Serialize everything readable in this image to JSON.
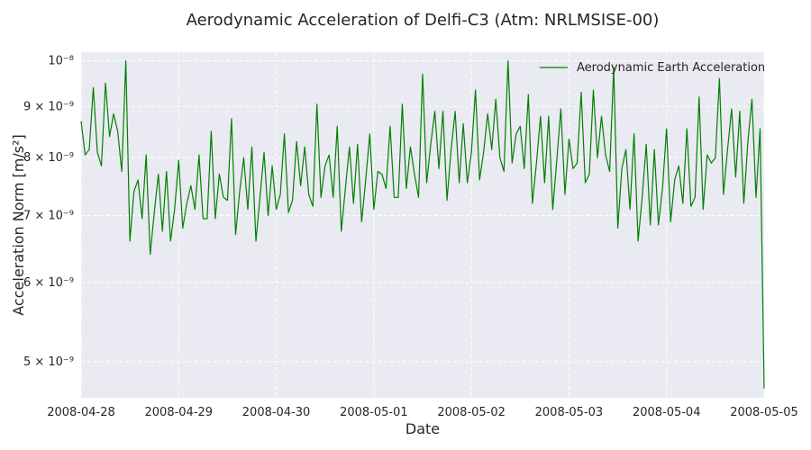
{
  "chart_data": {
    "type": "line",
    "title": "Aerodynamic Acceleration of Delfi-C3 (Atm: NRLMSISE-00)",
    "xlabel": "Date",
    "ylabel": "Acceleration Norm [m/s²]",
    "yscale": "log",
    "grid": true,
    "legend_placement": "top-right",
    "xlim": [
      "2008-04-28",
      "2008-05-05"
    ],
    "ylim": [
      4.6e-09,
      1.02e-08
    ],
    "x_ticks": [
      "2008-04-28",
      "2008-04-29",
      "2008-04-30",
      "2008-05-01",
      "2008-05-02",
      "2008-05-03",
      "2008-05-04",
      "2008-05-05"
    ],
    "y_ticks": [
      {
        "value": 1e-08,
        "label": "10⁻⁸"
      },
      {
        "value": 9e-09,
        "label": "9 × 10⁻⁹"
      },
      {
        "value": 8e-09,
        "label": "8 × 10⁻⁹"
      },
      {
        "value": 7e-09,
        "label": "7 × 10⁻⁹"
      },
      {
        "value": 6e-09,
        "label": "6 × 10⁻⁹"
      },
      {
        "value": 5e-09,
        "label": "5 × 10⁻⁹"
      }
    ],
    "colors": {
      "line": "#008000",
      "plot_bg": "#eaeaf2",
      "grid": "#ffffff"
    },
    "series": [
      {
        "name": "Aerodynamic Earth Acceleration",
        "x": [
          "2008-04-28T00:00",
          "2008-04-28T01:00",
          "2008-04-28T02:00",
          "2008-04-28T03:00",
          "2008-04-28T04:00",
          "2008-04-28T05:00",
          "2008-04-28T06:00",
          "2008-04-28T07:00",
          "2008-04-28T08:00",
          "2008-04-28T09:00",
          "2008-04-28T10:00",
          "2008-04-28T11:00",
          "2008-04-28T12:00",
          "2008-04-28T13:00",
          "2008-04-28T14:00",
          "2008-04-28T15:00",
          "2008-04-28T16:00",
          "2008-04-28T17:00",
          "2008-04-28T18:00",
          "2008-04-28T19:00",
          "2008-04-28T20:00",
          "2008-04-28T21:00",
          "2008-04-28T22:00",
          "2008-04-28T23:00",
          "2008-04-29T00:00",
          "2008-04-29T01:00",
          "2008-04-29T02:00",
          "2008-04-29T03:00",
          "2008-04-29T04:00",
          "2008-04-29T05:00",
          "2008-04-29T06:00",
          "2008-04-29T07:00",
          "2008-04-29T08:00",
          "2008-04-29T09:00",
          "2008-04-29T10:00",
          "2008-04-29T11:00",
          "2008-04-29T12:00",
          "2008-04-29T13:00",
          "2008-04-29T14:00",
          "2008-04-29T15:00",
          "2008-04-29T16:00",
          "2008-04-29T17:00",
          "2008-04-29T18:00",
          "2008-04-29T19:00",
          "2008-04-29T20:00",
          "2008-04-29T21:00",
          "2008-04-29T22:00",
          "2008-04-29T23:00",
          "2008-04-30T00:00",
          "2008-04-30T01:00",
          "2008-04-30T02:00",
          "2008-04-30T03:00",
          "2008-04-30T04:00",
          "2008-04-30T05:00",
          "2008-04-30T06:00",
          "2008-04-30T07:00",
          "2008-04-30T08:00",
          "2008-04-30T09:00",
          "2008-04-30T10:00",
          "2008-04-30T11:00",
          "2008-04-30T12:00",
          "2008-04-30T13:00",
          "2008-04-30T14:00",
          "2008-04-30T15:00",
          "2008-04-30T16:00",
          "2008-04-30T17:00",
          "2008-04-30T18:00",
          "2008-04-30T19:00",
          "2008-04-30T20:00",
          "2008-04-30T21:00",
          "2008-04-30T22:00",
          "2008-04-30T23:00",
          "2008-05-01T00:00",
          "2008-05-01T01:00",
          "2008-05-01T02:00",
          "2008-05-01T03:00",
          "2008-05-01T04:00",
          "2008-05-01T05:00",
          "2008-05-01T06:00",
          "2008-05-01T07:00",
          "2008-05-01T08:00",
          "2008-05-01T09:00",
          "2008-05-01T10:00",
          "2008-05-01T11:00",
          "2008-05-01T12:00",
          "2008-05-01T13:00",
          "2008-05-01T14:00",
          "2008-05-01T15:00",
          "2008-05-01T16:00",
          "2008-05-01T17:00",
          "2008-05-01T18:00",
          "2008-05-01T19:00",
          "2008-05-01T20:00",
          "2008-05-01T21:00",
          "2008-05-01T22:00",
          "2008-05-01T23:00",
          "2008-05-02T00:00",
          "2008-05-02T01:00",
          "2008-05-02T02:00",
          "2008-05-02T03:00",
          "2008-05-02T04:00",
          "2008-05-02T05:00",
          "2008-05-02T06:00",
          "2008-05-02T07:00",
          "2008-05-02T08:00",
          "2008-05-02T09:00",
          "2008-05-02T10:00",
          "2008-05-02T11:00",
          "2008-05-02T12:00",
          "2008-05-02T13:00",
          "2008-05-02T14:00",
          "2008-05-02T15:00",
          "2008-05-02T16:00",
          "2008-05-02T17:00",
          "2008-05-02T18:00",
          "2008-05-02T19:00",
          "2008-05-02T20:00",
          "2008-05-02T21:00",
          "2008-05-02T22:00",
          "2008-05-02T23:00",
          "2008-05-03T00:00",
          "2008-05-03T01:00",
          "2008-05-03T02:00",
          "2008-05-03T03:00",
          "2008-05-03T04:00",
          "2008-05-03T05:00",
          "2008-05-03T06:00",
          "2008-05-03T07:00",
          "2008-05-03T08:00",
          "2008-05-03T09:00",
          "2008-05-03T10:00",
          "2008-05-03T11:00",
          "2008-05-03T12:00",
          "2008-05-03T13:00",
          "2008-05-03T14:00",
          "2008-05-03T15:00",
          "2008-05-03T16:00",
          "2008-05-03T17:00",
          "2008-05-03T18:00",
          "2008-05-03T19:00",
          "2008-05-03T20:00",
          "2008-05-03T21:00",
          "2008-05-03T22:00",
          "2008-05-03T23:00",
          "2008-05-04T00:00",
          "2008-05-04T01:00",
          "2008-05-04T02:00",
          "2008-05-04T03:00",
          "2008-05-04T04:00",
          "2008-05-04T05:00",
          "2008-05-04T06:00",
          "2008-05-04T07:00",
          "2008-05-04T08:00",
          "2008-05-04T09:00",
          "2008-05-04T10:00",
          "2008-05-04T11:00",
          "2008-05-04T12:00",
          "2008-05-04T13:00",
          "2008-05-04T14:00",
          "2008-05-04T15:00",
          "2008-05-04T16:00",
          "2008-05-04T17:00",
          "2008-05-04T18:00",
          "2008-05-04T19:00",
          "2008-05-04T20:00",
          "2008-05-04T21:00",
          "2008-05-04T22:00",
          "2008-05-04T23:00",
          "2008-05-05T00:00"
        ],
        "y": [
          8.7e-09,
          8.05e-09,
          8.15e-09,
          9.4e-09,
          8.1e-09,
          7.85e-09,
          9.5e-09,
          8.4e-09,
          8.85e-09,
          8.5e-09,
          7.75e-09,
          1e-08,
          6.6e-09,
          7.4e-09,
          7.6e-09,
          6.95e-09,
          8.05e-09,
          6.4e-09,
          7.05e-09,
          7.7e-09,
          6.75e-09,
          7.75e-09,
          6.6e-09,
          7.1e-09,
          7.95e-09,
          6.8e-09,
          7.2e-09,
          7.5e-09,
          7.1e-09,
          8.05e-09,
          6.95e-09,
          6.95e-09,
          8.5e-09,
          6.95e-09,
          7.7e-09,
          7.3e-09,
          7.25e-09,
          8.75e-09,
          6.7e-09,
          7.4e-09,
          8e-09,
          7.1e-09,
          8.2e-09,
          6.6e-09,
          7.3e-09,
          8.1e-09,
          7e-09,
          7.85e-09,
          7.1e-09,
          7.35e-09,
          8.45e-09,
          7.05e-09,
          7.25e-09,
          8.3e-09,
          7.5e-09,
          8.2e-09,
          7.35e-09,
          7.15e-09,
          9.05e-09,
          7.3e-09,
          7.85e-09,
          8.05e-09,
          7.3e-09,
          8.6e-09,
          6.75e-09,
          7.45e-09,
          8.2e-09,
          7.2e-09,
          8.25e-09,
          6.9e-09,
          7.6e-09,
          8.45e-09,
          7.1e-09,
          7.75e-09,
          7.7e-09,
          7.45e-09,
          8.6e-09,
          7.3e-09,
          7.3e-09,
          9.05e-09,
          7.45e-09,
          8.2e-09,
          7.7e-09,
          7.3e-09,
          9.7e-09,
          7.55e-09,
          8.25e-09,
          8.9e-09,
          7.8e-09,
          8.9e-09,
          7.25e-09,
          8.15e-09,
          8.9e-09,
          7.55e-09,
          8.65e-09,
          7.55e-09,
          8.1e-09,
          9.35e-09,
          7.6e-09,
          8.1e-09,
          8.85e-09,
          8.15e-09,
          9.15e-09,
          8e-09,
          7.75e-09,
          1e-08,
          7.9e-09,
          8.45e-09,
          8.6e-09,
          7.8e-09,
          9.25e-09,
          7.2e-09,
          7.9e-09,
          8.8e-09,
          7.55e-09,
          8.8e-09,
          7.1e-09,
          7.95e-09,
          8.95e-09,
          7.35e-09,
          8.35e-09,
          7.8e-09,
          7.9e-09,
          9.3e-09,
          7.55e-09,
          7.7e-09,
          9.35e-09,
          8e-09,
          8.8e-09,
          8.05e-09,
          7.75e-09,
          9.85e-09,
          6.8e-09,
          7.8e-09,
          8.15e-09,
          7.1e-09,
          8.45e-09,
          6.6e-09,
          7.3e-09,
          8.25e-09,
          6.85e-09,
          8.15e-09,
          6.85e-09,
          7.45e-09,
          8.55e-09,
          6.9e-09,
          7.6e-09,
          7.85e-09,
          7.2e-09,
          8.55e-09,
          7.15e-09,
          7.3e-09,
          9.2e-09,
          7.1e-09,
          8.05e-09,
          7.9e-09,
          8e-09,
          9.6e-09,
          7.35e-09,
          8.15e-09,
          8.95e-09,
          7.65e-09,
          8.9e-09,
          7.2e-09,
          8.3e-09,
          9.15e-09,
          7.3e-09,
          8.55e-09,
          4.7e-09
        ]
      }
    ]
  }
}
